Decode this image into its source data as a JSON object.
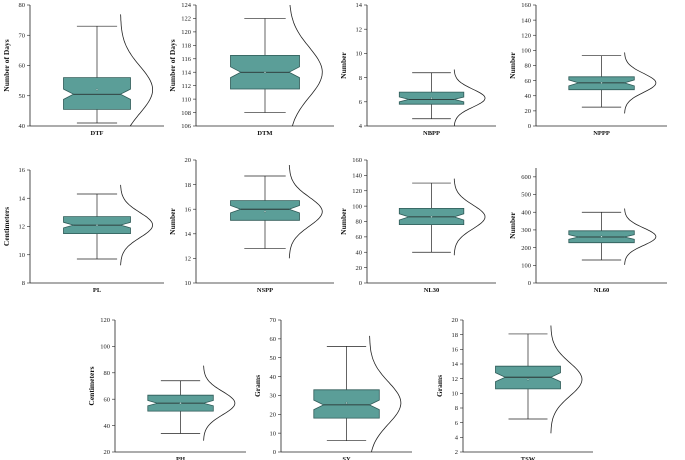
{
  "figure": {
    "background": "#ffffff",
    "box_fill": "#5b9e98",
    "box_stroke": "#2f5a57",
    "line_color": "#222222"
  },
  "chart_data": [
    {
      "type": "box",
      "category": "DTF",
      "ylabel": "Number of Days",
      "ylim": [
        40,
        80
      ],
      "ticks": [
        40,
        50,
        60,
        70,
        80
      ],
      "box": {
        "min": 41,
        "q1": 45.5,
        "median": 50.5,
        "q3": 56,
        "max": 73,
        "mean": 52,
        "notch_lo": 48.8,
        "notch_hi": 52.2
      }
    },
    {
      "type": "box",
      "category": "DTM",
      "ylabel": "Number of Days",
      "ylim": [
        106,
        124
      ],
      "ticks": [
        106,
        108,
        110,
        112,
        114,
        116,
        118,
        120,
        122,
        124
      ],
      "box": {
        "min": 108,
        "q1": 111.5,
        "median": 114,
        "q3": 116.5,
        "max": 122,
        "mean": 114,
        "notch_lo": 113.2,
        "notch_hi": 114.8
      }
    },
    {
      "type": "box",
      "category": "NBPP",
      "ylabel": "Number",
      "ylim": [
        4,
        14
      ],
      "ticks": [
        4,
        6,
        8,
        10,
        12,
        14
      ],
      "box": {
        "min": 4.6,
        "q1": 5.8,
        "median": 6.2,
        "q3": 6.8,
        "max": 8.4,
        "mean": 6.3,
        "notch_lo": 6.0,
        "notch_hi": 6.4
      }
    },
    {
      "type": "box",
      "category": "NPPP",
      "ylabel": "Number",
      "ylim": [
        0,
        160
      ],
      "ticks": [
        0,
        20,
        40,
        60,
        80,
        100,
        120,
        140,
        160
      ],
      "box": {
        "min": 25,
        "q1": 48,
        "median": 57,
        "q3": 65,
        "max": 93,
        "mean": 57,
        "notch_lo": 53,
        "notch_hi": 61
      }
    },
    {
      "type": "box",
      "category": "PL",
      "ylabel": "Centimeters",
      "ylim": [
        8,
        16
      ],
      "ticks": [
        8,
        10,
        12,
        14,
        16
      ],
      "box": {
        "min": 9.7,
        "q1": 11.5,
        "median": 12.1,
        "q3": 12.7,
        "max": 14.3,
        "mean": 12.1,
        "notch_lo": 11.9,
        "notch_hi": 12.3
      }
    },
    {
      "type": "box",
      "category": "NSPP",
      "ylabel": "Number",
      "ylim": [
        10,
        20
      ],
      "ticks": [
        10,
        12,
        14,
        16,
        18,
        20
      ],
      "box": {
        "min": 12.8,
        "q1": 15.1,
        "median": 16.0,
        "q3": 16.7,
        "max": 18.7,
        "mean": 15.8,
        "notch_lo": 15.7,
        "notch_hi": 16.3
      }
    },
    {
      "type": "box",
      "category": "NL30",
      "ylabel": "Number",
      "ylim": [
        0,
        160
      ],
      "ticks": [
        0,
        20,
        40,
        60,
        80,
        100,
        120,
        140,
        160
      ],
      "box": {
        "min": 40,
        "q1": 76,
        "median": 86,
        "q3": 97,
        "max": 130,
        "mean": 86,
        "notch_lo": 82,
        "notch_hi": 90
      }
    },
    {
      "type": "box",
      "category": "NL60",
      "ylabel": "Number",
      "ylim": [
        0,
        650
      ],
      "ticks": [
        0,
        100,
        200,
        300,
        400,
        500,
        600
      ],
      "box": {
        "min": 130,
        "q1": 228,
        "median": 260,
        "q3": 295,
        "max": 400,
        "mean": 262,
        "notch_lo": 247,
        "notch_hi": 273
      }
    },
    {
      "type": "box",
      "category": "PH",
      "ylabel": "Centimeters",
      "ylim": [
        20,
        120
      ],
      "ticks": [
        20,
        40,
        60,
        80,
        100,
        120
      ],
      "box": {
        "min": 34,
        "q1": 51,
        "median": 57,
        "q3": 63,
        "max": 74,
        "mean": 57,
        "notch_lo": 55,
        "notch_hi": 59
      }
    },
    {
      "type": "box",
      "category": "SY",
      "ylabel": "Grams",
      "ylim": [
        0,
        70
      ],
      "ticks": [
        0,
        10,
        20,
        30,
        40,
        50,
        60,
        70
      ],
      "box": {
        "min": 6,
        "q1": 18,
        "median": 25,
        "q3": 33,
        "max": 56,
        "mean": 26,
        "notch_lo": 22.5,
        "notch_hi": 27.5
      }
    },
    {
      "type": "box",
      "category": "TSW",
      "ylabel": "Grams",
      "ylim": [
        2,
        20
      ],
      "ticks": [
        2,
        4,
        6,
        8,
        10,
        12,
        14,
        16,
        18,
        20
      ],
      "box": {
        "min": 6.5,
        "q1": 10.6,
        "median": 12.2,
        "q3": 13.7,
        "max": 18.1,
        "mean": 11.9,
        "notch_lo": 11.6,
        "notch_hi": 12.8
      }
    }
  ]
}
